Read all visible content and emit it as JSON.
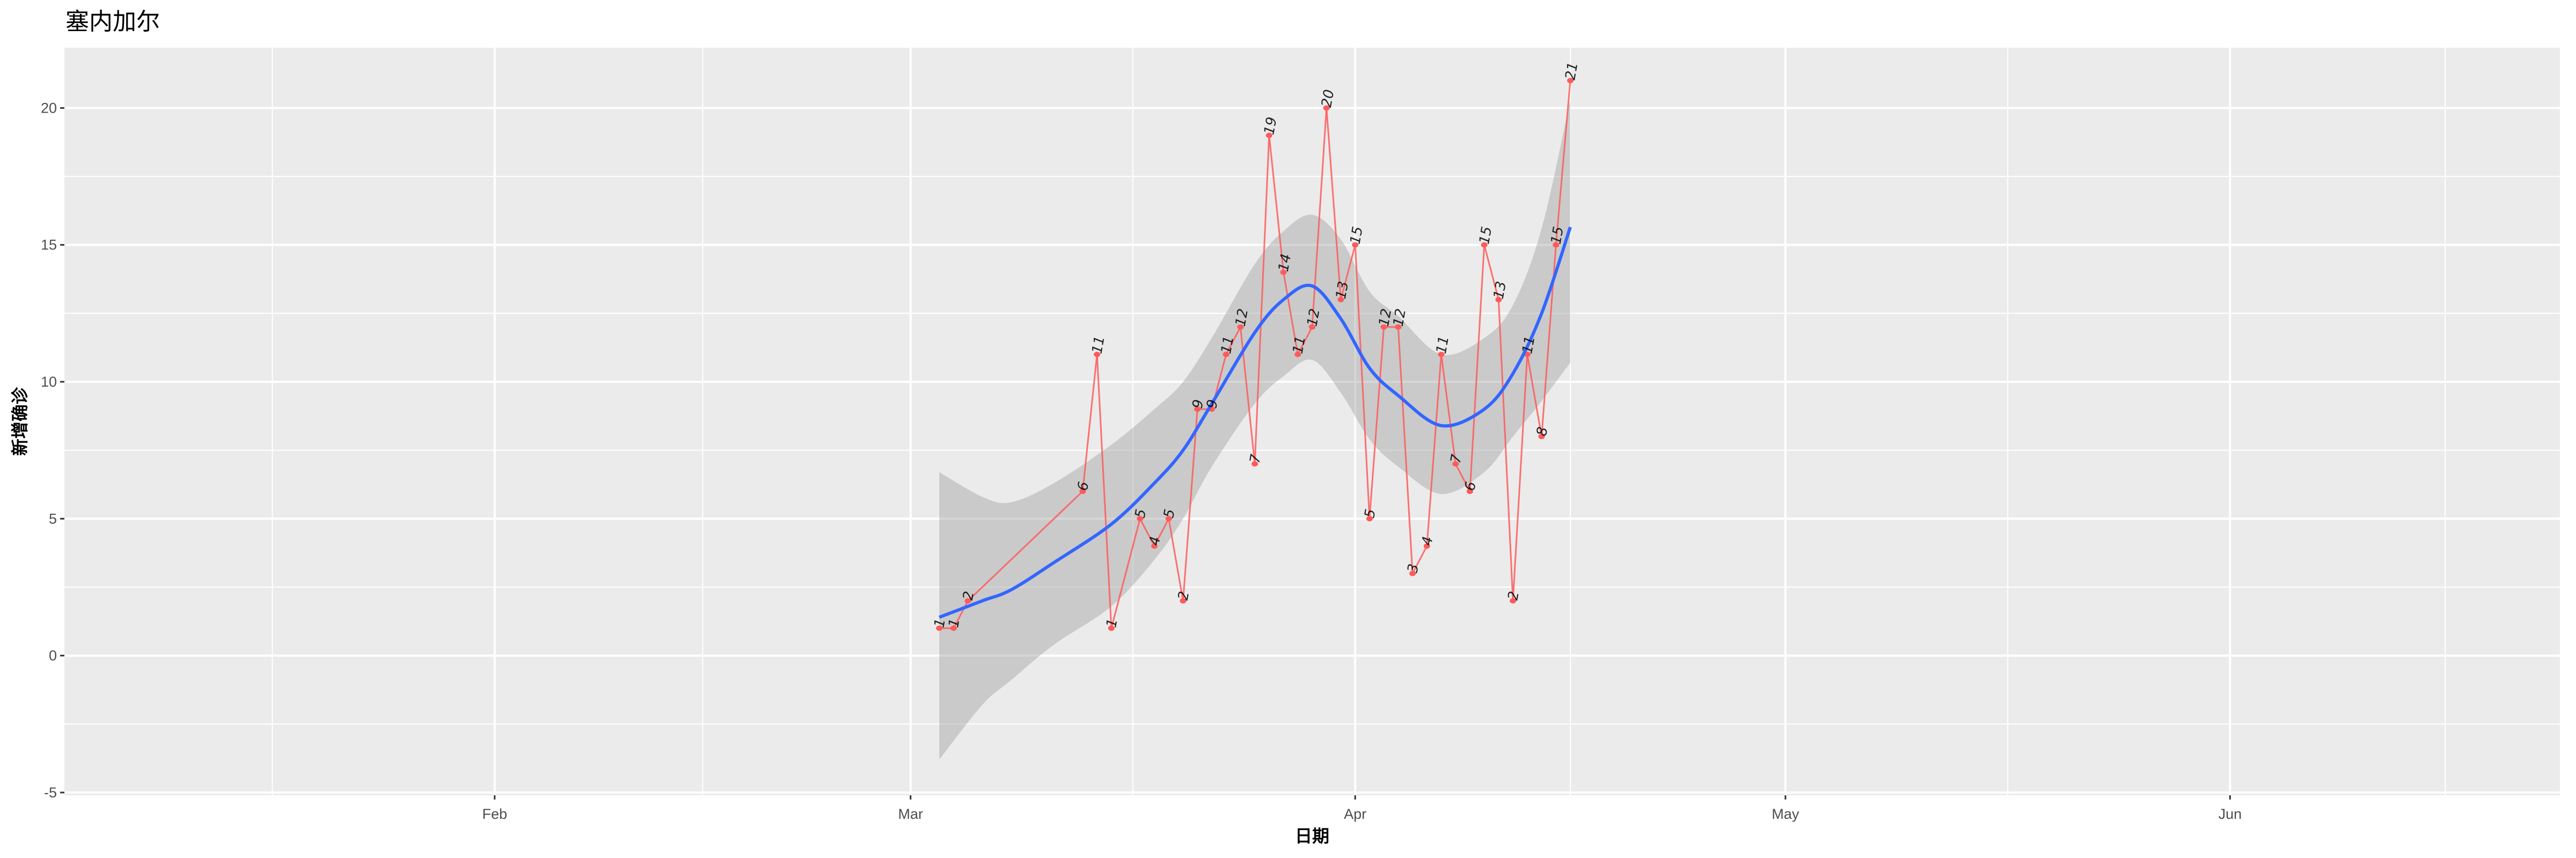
{
  "chart_data": {
    "type": "line",
    "title": "塞内加尔",
    "xlabel": "日期",
    "ylabel": "新增确诊",
    "x_type": "date (month-day)",
    "xlim": [
      "01-02",
      "06-24"
    ],
    "ylim": [
      -5.1,
      22.2
    ],
    "x_ticks": [
      {
        "date": "02-01",
        "label": "Feb"
      },
      {
        "date": "03-01",
        "label": "Mar"
      },
      {
        "date": "04-01",
        "label": "Apr"
      },
      {
        "date": "05-01",
        "label": "May"
      },
      {
        "date": "06-01",
        "label": "Jun"
      }
    ],
    "y_ticks": [
      -5,
      0,
      5,
      10,
      15,
      20
    ],
    "grid": true,
    "background": "#EBEBEB",
    "colors": {
      "points": "#FF5A5A",
      "line": "#F8766D",
      "smooth": "#3366FF",
      "ribbon": "#C9C9C9"
    },
    "points": [
      {
        "x": "03-03",
        "y": 1
      },
      {
        "x": "03-04",
        "y": 1
      },
      {
        "x": "03-05",
        "y": 2
      },
      {
        "x": "03-13",
        "y": 6
      },
      {
        "x": "03-14",
        "y": 11
      },
      {
        "x": "03-15",
        "y": 1
      },
      {
        "x": "03-17",
        "y": 5
      },
      {
        "x": "03-18",
        "y": 4
      },
      {
        "x": "03-19",
        "y": 5
      },
      {
        "x": "03-20",
        "y": 2
      },
      {
        "x": "03-21",
        "y": 9
      },
      {
        "x": "03-22",
        "y": 9
      },
      {
        "x": "03-23",
        "y": 11
      },
      {
        "x": "03-24",
        "y": 12
      },
      {
        "x": "03-25",
        "y": 7
      },
      {
        "x": "03-26",
        "y": 19
      },
      {
        "x": "03-27",
        "y": 14
      },
      {
        "x": "03-28",
        "y": 11
      },
      {
        "x": "03-29",
        "y": 12
      },
      {
        "x": "03-30",
        "y": 20
      },
      {
        "x": "03-31",
        "y": 13
      },
      {
        "x": "04-01",
        "y": 15
      },
      {
        "x": "04-02",
        "y": 5
      },
      {
        "x": "04-03",
        "y": 12
      },
      {
        "x": "04-04",
        "y": 12
      },
      {
        "x": "04-05",
        "y": 3
      },
      {
        "x": "04-06",
        "y": 4
      },
      {
        "x": "04-07",
        "y": 11
      },
      {
        "x": "04-08",
        "y": 7
      },
      {
        "x": "04-09",
        "y": 6
      },
      {
        "x": "04-10",
        "y": 15
      },
      {
        "x": "04-11",
        "y": 13
      },
      {
        "x": "04-12",
        "y": 2
      },
      {
        "x": "04-13",
        "y": 11
      },
      {
        "x": "04-14",
        "y": 8
      },
      {
        "x": "04-15",
        "y": 15
      },
      {
        "x": "04-16",
        "y": 21
      }
    ],
    "smooth": [
      {
        "x": "03-03",
        "fit": 1.4,
        "lo": -3.8,
        "hi": 6.7
      },
      {
        "x": "03-06",
        "fit": 2.0,
        "lo": -1.8,
        "hi": 5.8
      },
      {
        "x": "03-08",
        "fit": 2.4,
        "lo": -0.9,
        "hi": 5.6
      },
      {
        "x": "03-11",
        "fit": 3.4,
        "lo": 0.4,
        "hi": 6.3
      },
      {
        "x": "03-15",
        "fit": 4.8,
        "lo": 1.8,
        "hi": 7.7
      },
      {
        "x": "03-18",
        "fit": 6.3,
        "lo": 3.5,
        "hi": 9.0
      },
      {
        "x": "03-20",
        "fit": 7.5,
        "lo": 5.0,
        "hi": 10.0
      },
      {
        "x": "03-22",
        "fit": 9.2,
        "lo": 6.9,
        "hi": 11.6
      },
      {
        "x": "03-25",
        "fit": 11.8,
        "lo": 9.2,
        "hi": 14.3
      },
      {
        "x": "03-27",
        "fit": 13.0,
        "lo": 10.2,
        "hi": 15.5
      },
      {
        "x": "03-29",
        "fit": 13.5,
        "lo": 10.8,
        "hi": 16.1
      },
      {
        "x": "03-31",
        "fit": 12.3,
        "lo": 9.6,
        "hi": 15.2
      },
      {
        "x": "04-02",
        "fit": 10.5,
        "lo": 7.9,
        "hi": 13.3
      },
      {
        "x": "04-04",
        "fit": 9.5,
        "lo": 6.9,
        "hi": 12.4
      },
      {
        "x": "04-07",
        "fit": 8.4,
        "lo": 5.9,
        "hi": 11.0
      },
      {
        "x": "04-10",
        "fit": 9.0,
        "lo": 6.7,
        "hi": 11.6
      },
      {
        "x": "04-12",
        "fit": 10.3,
        "lo": 8.0,
        "hi": 12.8
      },
      {
        "x": "04-14",
        "fit": 12.5,
        "lo": 9.3,
        "hi": 15.6
      },
      {
        "x": "04-16",
        "fit": 15.65,
        "lo": 10.7,
        "hi": 20.3
      }
    ]
  }
}
